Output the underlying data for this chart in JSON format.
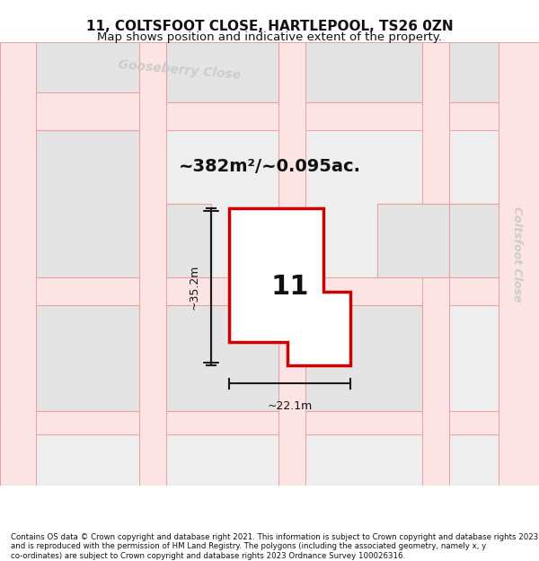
{
  "title_line1": "11, COLTSFOOT CLOSE, HARTLEPOOL, TS26 0ZN",
  "title_line2": "Map shows position and indicative extent of the property.",
  "area_text": "~382m²/~0.095ac.",
  "label_number": "11",
  "dim_height": "~35.2m",
  "dim_width": "~22.1m",
  "footer_text": "Contains OS data © Crown copyright and database right 2021. This information is subject to Crown copyright and database rights 2023 and is reproduced with the permission of HM Land Registry. The polygons (including the associated geometry, namely x, y co-ordinates) are subject to Crown copyright and database rights 2023 Ordnance Survey 100026316.",
  "bg_color": "#f0f0f0",
  "map_bg": "#f5f5f5",
  "block_color": "#e8e8e8",
  "road_color": "#fadadd",
  "road_edge_color": "#f08080",
  "plot_line_color": "#cc0000",
  "dim_line_color": "#1a1a1a",
  "street_label_gooseberry": "Gooseberry Close",
  "street_label_coltsfoot": "Coltsfoot Close"
}
